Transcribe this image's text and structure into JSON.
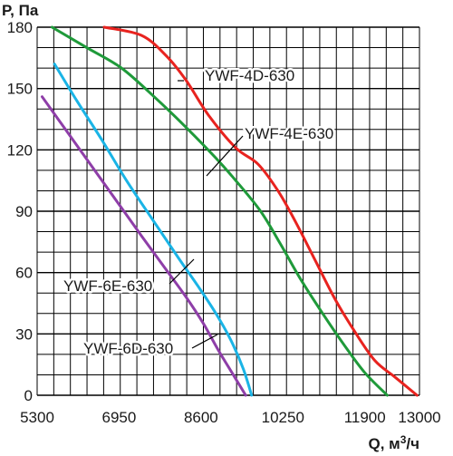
{
  "chart_data": {
    "type": "line",
    "ylabel": "P, Па",
    "xlabel_prefix": "Q, м",
    "xlabel_sup": "3",
    "xlabel_suffix": "/ч",
    "xlim": [
      5300,
      13000
    ],
    "ylim": [
      0,
      180
    ],
    "x_ticks": [
      5300,
      6950,
      8600,
      10250,
      11900,
      13000
    ],
    "y_ticks": [
      0,
      30,
      60,
      90,
      120,
      150,
      180
    ],
    "grid": true,
    "series": [
      {
        "name": "YWF-4D-630",
        "color": "#e8231f",
        "points": [
          [
            6650,
            180
          ],
          [
            7400,
            176
          ],
          [
            7900,
            166
          ],
          [
            8300,
            154
          ],
          [
            8750,
            137
          ],
          [
            9300,
            121
          ],
          [
            9750,
            113
          ],
          [
            10150,
            100
          ],
          [
            10500,
            85
          ],
          [
            10900,
            66
          ],
          [
            11300,
            47
          ],
          [
            11700,
            31
          ],
          [
            12100,
            17
          ],
          [
            12500,
            9
          ],
          [
            12950,
            0
          ]
        ]
      },
      {
        "name": "YWF-4E-630",
        "color": "#1f9a3a",
        "points": [
          [
            5600,
            180
          ],
          [
            6300,
            170
          ],
          [
            7000,
            160
          ],
          [
            7700,
            145
          ],
          [
            8300,
            131
          ],
          [
            8900,
            116
          ],
          [
            9300,
            105
          ],
          [
            9800,
            90
          ],
          [
            10200,
            74
          ],
          [
            10600,
            57
          ],
          [
            11050,
            40
          ],
          [
            11500,
            24
          ],
          [
            11900,
            11
          ],
          [
            12350,
            0
          ]
        ]
      },
      {
        "name": "YWF-6E-630",
        "color": "#1ab4e6",
        "points": [
          [
            5650,
            162
          ],
          [
            6100,
            144
          ],
          [
            6600,
            125
          ],
          [
            7100,
            105
          ],
          [
            7650,
            85
          ],
          [
            8150,
            67
          ],
          [
            8550,
            53
          ],
          [
            8900,
            40
          ],
          [
            9200,
            27
          ],
          [
            9450,
            13
          ],
          [
            9620,
            0
          ]
        ]
      },
      {
        "name": "YWF-6D-630",
        "color": "#8e3ea8",
        "points": [
          [
            5400,
            146
          ],
          [
            5900,
            129
          ],
          [
            6400,
            112
          ],
          [
            6900,
            95
          ],
          [
            7400,
            78
          ],
          [
            7850,
            63
          ],
          [
            8300,
            48
          ],
          [
            8650,
            35
          ],
          [
            8950,
            22
          ],
          [
            9250,
            10
          ],
          [
            9500,
            0
          ]
        ]
      }
    ],
    "annotations": [
      {
        "text": "YWF-4D-630",
        "series": 0
      },
      {
        "text": "YWF-4E-630",
        "series": 1
      },
      {
        "text": "YWF-6E-630",
        "series": 2
      },
      {
        "text": "YWF-6D-630",
        "series": 3
      }
    ]
  }
}
